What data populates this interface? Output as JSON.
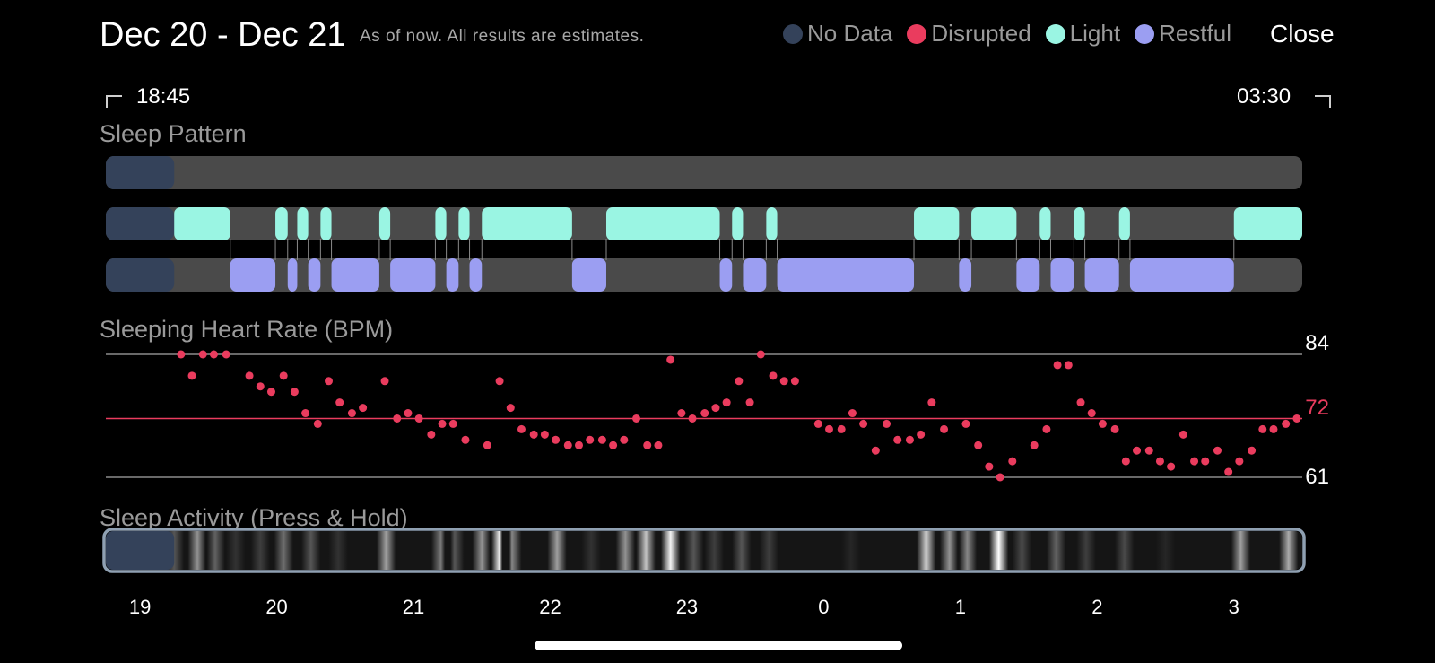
{
  "header": {
    "title": "Dec 20 - Dec 21",
    "subtitle": "As of now. All results are estimates.",
    "close_label": "Close"
  },
  "legend": [
    {
      "label": "No Data",
      "color": "#34425a"
    },
    {
      "label": "Disrupted",
      "color": "#ea3c5e"
    },
    {
      "label": "Light",
      "color": "#9af5e3"
    },
    {
      "label": "Restful",
      "color": "#9b9ef2"
    }
  ],
  "range": {
    "start": "18:45",
    "end": "03:30"
  },
  "sections": {
    "sleep_pattern": "Sleep Pattern",
    "heart_rate": "Sleeping Heart Rate (BPM)",
    "activity": "Sleep Activity (Press & Hold)"
  },
  "colors": {
    "background": "#000000",
    "track": "#4a4a4a",
    "no_data": "#34425a",
    "light": "#9af5e3",
    "restful": "#9b9ef2",
    "heart": "#ea3c5e"
  },
  "chart_data": {
    "type": "scatter",
    "ylabel": "",
    "reference_lines": [
      {
        "label": "84",
        "value": 84
      },
      {
        "label": "72",
        "value": 72
      },
      {
        "label": "61",
        "value": 61
      }
    ],
    "x_ticks": [
      "19",
      "20",
      "21",
      "22",
      "23",
      "0",
      "1",
      "2",
      "3"
    ],
    "x_tick_hours": [
      19,
      20,
      21,
      22,
      23,
      24,
      25,
      26,
      27
    ],
    "x_range_hours": [
      18.75,
      27.5
    ],
    "sleep_pattern": {
      "no_data": [
        [
          18.75,
          19.25
        ]
      ],
      "light": [
        [
          19.25,
          19.66
        ],
        [
          19.99,
          20.08
        ],
        [
          20.15,
          20.23
        ],
        [
          20.32,
          20.4
        ],
        [
          20.75,
          20.83
        ],
        [
          21.16,
          21.24
        ],
        [
          21.33,
          21.41
        ],
        [
          21.5,
          22.16
        ],
        [
          22.41,
          23.24
        ],
        [
          23.33,
          23.41
        ],
        [
          23.58,
          23.66
        ],
        [
          24.66,
          24.99
        ],
        [
          25.08,
          25.41
        ],
        [
          25.58,
          25.66
        ],
        [
          25.83,
          25.91
        ],
        [
          26.16,
          26.24
        ],
        [
          27.0,
          27.5
        ]
      ],
      "restful": [
        [
          19.66,
          19.99
        ],
        [
          20.08,
          20.15
        ],
        [
          20.23,
          20.32
        ],
        [
          20.4,
          20.75
        ],
        [
          20.83,
          21.16
        ],
        [
          21.24,
          21.33
        ],
        [
          21.41,
          21.5
        ],
        [
          22.16,
          22.41
        ],
        [
          23.24,
          23.33
        ],
        [
          23.41,
          23.58
        ],
        [
          23.66,
          24.66
        ],
        [
          24.99,
          25.08
        ],
        [
          25.41,
          25.58
        ],
        [
          25.66,
          25.83
        ],
        [
          25.91,
          26.16
        ],
        [
          26.24,
          27.0
        ]
      ]
    },
    "series": [
      {
        "points": [
          [
            19.3,
            84
          ],
          [
            19.38,
            80
          ],
          [
            19.46,
            84
          ],
          [
            19.54,
            84
          ],
          [
            19.63,
            84
          ],
          [
            19.8,
            80
          ],
          [
            19.88,
            78
          ],
          [
            19.96,
            77
          ],
          [
            20.05,
            80
          ],
          [
            20.13,
            77
          ],
          [
            20.21,
            73
          ],
          [
            20.3,
            71
          ],
          [
            20.38,
            79
          ],
          [
            20.46,
            75
          ],
          [
            20.55,
            73
          ],
          [
            20.63,
            74
          ],
          [
            20.79,
            79
          ],
          [
            20.88,
            72
          ],
          [
            20.96,
            73
          ],
          [
            21.04,
            72
          ],
          [
            21.13,
            69
          ],
          [
            21.21,
            71
          ],
          [
            21.29,
            71
          ],
          [
            21.38,
            68
          ],
          [
            21.54,
            67
          ],
          [
            21.63,
            79
          ],
          [
            21.71,
            74
          ],
          [
            21.79,
            70
          ],
          [
            21.88,
            69
          ],
          [
            21.96,
            69
          ],
          [
            22.04,
            68
          ],
          [
            22.13,
            67
          ],
          [
            22.21,
            67
          ],
          [
            22.29,
            68
          ],
          [
            22.38,
            68
          ],
          [
            22.46,
            67
          ],
          [
            22.54,
            68
          ],
          [
            22.63,
            72
          ],
          [
            22.71,
            67
          ],
          [
            22.79,
            67
          ],
          [
            22.88,
            83
          ],
          [
            22.96,
            73
          ],
          [
            23.04,
            72
          ],
          [
            23.13,
            73
          ],
          [
            23.21,
            74
          ],
          [
            23.29,
            75
          ],
          [
            23.38,
            79
          ],
          [
            23.46,
            75
          ],
          [
            23.54,
            84
          ],
          [
            23.63,
            80
          ],
          [
            23.71,
            79
          ],
          [
            23.79,
            79
          ],
          [
            23.96,
            71
          ],
          [
            24.04,
            70
          ],
          [
            24.13,
            70
          ],
          [
            24.21,
            73
          ],
          [
            24.29,
            71
          ],
          [
            24.38,
            66
          ],
          [
            24.46,
            71
          ],
          [
            24.54,
            68
          ],
          [
            24.63,
            68
          ],
          [
            24.71,
            69
          ],
          [
            24.79,
            75
          ],
          [
            24.88,
            70
          ],
          [
            25.04,
            71
          ],
          [
            25.13,
            67
          ],
          [
            25.21,
            63
          ],
          [
            25.29,
            61
          ],
          [
            25.38,
            64
          ],
          [
            25.54,
            67
          ],
          [
            25.63,
            70
          ],
          [
            25.71,
            82
          ],
          [
            25.79,
            82
          ],
          [
            25.88,
            75
          ],
          [
            25.96,
            73
          ],
          [
            26.04,
            71
          ],
          [
            26.13,
            70
          ],
          [
            26.21,
            64
          ],
          [
            26.29,
            66
          ],
          [
            26.38,
            66
          ],
          [
            26.46,
            64
          ],
          [
            26.54,
            63
          ],
          [
            26.63,
            69
          ],
          [
            26.71,
            64
          ],
          [
            26.79,
            64
          ],
          [
            26.88,
            66
          ],
          [
            26.96,
            62
          ],
          [
            27.04,
            64
          ],
          [
            27.13,
            66
          ],
          [
            27.21,
            70
          ],
          [
            27.29,
            70
          ],
          [
            27.38,
            71
          ],
          [
            27.46,
            72
          ]
        ]
      }
    ],
    "activity": {
      "type": "heatmap",
      "levels": [
        [
          19.25,
          0.3
        ],
        [
          19.42,
          0.55
        ],
        [
          19.55,
          0.35
        ],
        [
          19.7,
          0.15
        ],
        [
          19.88,
          0.2
        ],
        [
          20.05,
          0.4
        ],
        [
          20.25,
          0.3
        ],
        [
          20.45,
          0.15
        ],
        [
          20.8,
          0.6
        ],
        [
          21.2,
          0.45
        ],
        [
          21.3,
          0.3
        ],
        [
          21.5,
          0.55
        ],
        [
          21.63,
          0.95
        ],
        [
          21.72,
          0.5
        ],
        [
          22.05,
          0.6
        ],
        [
          22.3,
          0.15
        ],
        [
          22.55,
          0.55
        ],
        [
          22.7,
          0.75
        ],
        [
          22.88,
          0.95
        ],
        [
          23.05,
          0.3
        ],
        [
          23.2,
          0.2
        ],
        [
          23.4,
          0.3
        ],
        [
          23.6,
          0.2
        ],
        [
          24.2,
          0.1
        ],
        [
          24.75,
          0.8
        ],
        [
          24.92,
          0.55
        ],
        [
          25.05,
          0.5
        ],
        [
          25.28,
          1.0
        ],
        [
          25.45,
          0.25
        ],
        [
          25.7,
          0.35
        ],
        [
          25.92,
          0.2
        ],
        [
          26.2,
          0.25
        ],
        [
          26.5,
          0.1
        ],
        [
          27.05,
          0.6
        ],
        [
          27.4,
          0.65
        ]
      ]
    }
  }
}
